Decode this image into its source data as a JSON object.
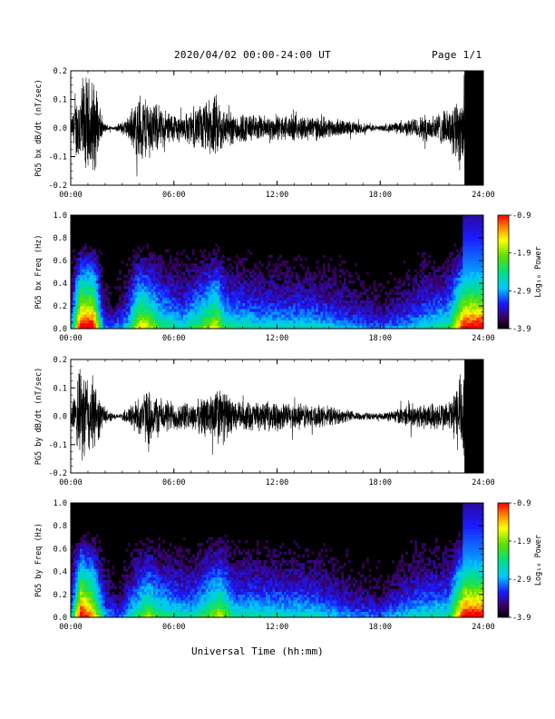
{
  "header": {
    "date_range": "2020/04/02  00:00-24:00 UT",
    "page": "Page 1/1"
  },
  "x_axis_label": "Universal Time (hh:mm)",
  "chart_data": [
    {
      "type": "line",
      "ylabel": "PG5 bx dB/dt (nT/sec)",
      "xlim": [
        0,
        24
      ],
      "ylim": [
        -0.2,
        0.2
      ],
      "x_ticks": [
        "00:00",
        "06:00",
        "12:00",
        "18:00",
        "24:00"
      ],
      "y_ticks": [
        "0.2",
        "0.1",
        "0.0",
        "-0.1",
        "-0.2"
      ],
      "activity_envelope": [
        {
          "t": 0.0,
          "amp": 0.03
        },
        {
          "t": 0.6,
          "amp": 0.2
        },
        {
          "t": 1.3,
          "amp": 0.2
        },
        {
          "t": 1.9,
          "amp": 0.02
        },
        {
          "t": 2.5,
          "amp": 0.005
        },
        {
          "t": 3.3,
          "amp": 0.04
        },
        {
          "t": 4.0,
          "amp": 0.14
        },
        {
          "t": 4.6,
          "amp": 0.12
        },
        {
          "t": 5.2,
          "amp": 0.08
        },
        {
          "t": 6.5,
          "amp": 0.05
        },
        {
          "t": 8.5,
          "amp": 0.13
        },
        {
          "t": 9.0,
          "amp": 0.07
        },
        {
          "t": 11.0,
          "amp": 0.05
        },
        {
          "t": 14.0,
          "amp": 0.05
        },
        {
          "t": 16.0,
          "amp": 0.03
        },
        {
          "t": 18.0,
          "amp": 0.01
        },
        {
          "t": 19.5,
          "amp": 0.03
        },
        {
          "t": 20.5,
          "amp": 0.05
        },
        {
          "t": 22.0,
          "amp": 0.07
        },
        {
          "t": 22.9,
          "amp": 0.2
        },
        {
          "t": 24.0,
          "amp": 0.2
        }
      ]
    },
    {
      "type": "heatmap",
      "ylabel": "PG5 bx Freq (Hz)",
      "xlim": [
        0,
        24
      ],
      "ylim": [
        0.0,
        1.0
      ],
      "x_ticks": [
        "00:00",
        "06:00",
        "12:00",
        "18:00",
        "24:00"
      ],
      "y_ticks": [
        "1.0",
        "0.8",
        "0.6",
        "0.4",
        "0.2",
        "0.0"
      ],
      "colorbar": {
        "label": "Log₁₀ Power",
        "min": -3.9,
        "max": -0.9,
        "ticks": [
          "-0.9",
          "-1.9",
          "-2.9",
          "-3.9"
        ]
      }
    },
    {
      "type": "line",
      "ylabel": "PG5 by dB/dt (nT/sec)",
      "xlim": [
        0,
        24
      ],
      "ylim": [
        -0.2,
        0.2
      ],
      "x_ticks": [
        "00:00",
        "06:00",
        "12:00",
        "18:00",
        "24:00"
      ],
      "y_ticks": [
        "0.2",
        "0.1",
        "0.0",
        "-0.1",
        "-0.2"
      ],
      "activity_envelope": [
        {
          "t": 0.0,
          "amp": 0.03
        },
        {
          "t": 0.6,
          "amp": 0.2
        },
        {
          "t": 1.3,
          "amp": 0.15
        },
        {
          "t": 2.0,
          "amp": 0.03
        },
        {
          "t": 2.8,
          "amp": 0.005
        },
        {
          "t": 3.5,
          "amp": 0.05
        },
        {
          "t": 4.5,
          "amp": 0.11
        },
        {
          "t": 5.3,
          "amp": 0.07
        },
        {
          "t": 7.0,
          "amp": 0.05
        },
        {
          "t": 8.7,
          "amp": 0.12
        },
        {
          "t": 9.5,
          "amp": 0.06
        },
        {
          "t": 14.0,
          "amp": 0.05
        },
        {
          "t": 16.5,
          "amp": 0.02
        },
        {
          "t": 18.0,
          "amp": 0.01
        },
        {
          "t": 20.0,
          "amp": 0.05
        },
        {
          "t": 22.0,
          "amp": 0.06
        },
        {
          "t": 22.9,
          "amp": 0.2
        },
        {
          "t": 24.0,
          "amp": 0.2
        }
      ]
    },
    {
      "type": "heatmap",
      "ylabel": "PG5 by Freq (Hz)",
      "xlim": [
        0,
        24
      ],
      "ylim": [
        0.0,
        1.0
      ],
      "x_ticks": [
        "00:00",
        "06:00",
        "12:00",
        "18:00",
        "24:00"
      ],
      "y_ticks": [
        "1.0",
        "0.8",
        "0.6",
        "0.4",
        "0.2",
        "0.0"
      ],
      "colorbar": {
        "label": "Log₁₀ Power",
        "min": -3.9,
        "max": -0.9,
        "ticks": [
          "-0.9",
          "-1.9",
          "-2.9",
          "-3.9"
        ]
      }
    }
  ]
}
